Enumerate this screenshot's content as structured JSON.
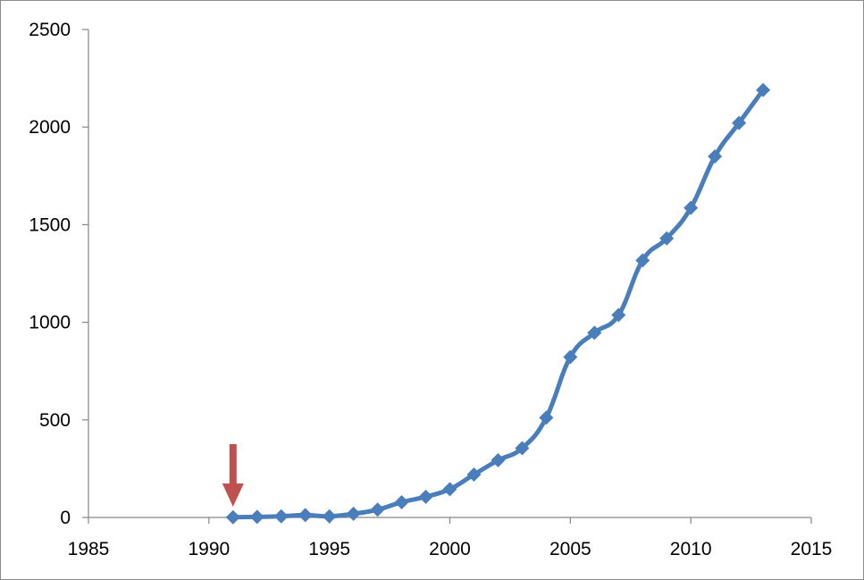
{
  "chart_data": {
    "type": "line",
    "title": "",
    "xlabel": "",
    "ylabel": "",
    "xlim": [
      1985,
      2015
    ],
    "ylim": [
      0,
      2500
    ],
    "x_ticks": [
      1985,
      1990,
      1995,
      2000,
      2005,
      2010,
      2015
    ],
    "y_ticks": [
      0,
      500,
      1000,
      1500,
      2000,
      2500
    ],
    "x_tick_labels": [
      "1985",
      "1990",
      "1995",
      "2000",
      "2005",
      "2010",
      "2015"
    ],
    "y_tick_labels": [
      "0",
      "500",
      "1000",
      "1500",
      "2000",
      "2500"
    ],
    "grid": false,
    "legend": "none",
    "series": [
      {
        "color": "#4a7ebb",
        "marker": "diamond",
        "x": [
          1991,
          1992,
          1993,
          1994,
          1995,
          1996,
          1997,
          1998,
          1999,
          2000,
          2001,
          2002,
          2003,
          2004,
          2005,
          2006,
          2007,
          2008,
          2009,
          2010,
          2011,
          2012,
          2013
        ],
        "y": [
          1,
          3,
          6,
          12,
          6,
          19,
          40,
          78,
          106,
          145,
          220,
          293,
          355,
          511,
          822,
          946,
          1037,
          1317,
          1430,
          1586,
          1850,
          2021,
          2190
        ]
      }
    ],
    "annotations": [
      {
        "type": "arrow",
        "points_to": {
          "x": 1991,
          "y": 0
        },
        "direction": "down",
        "color": "#c0504d"
      }
    ]
  }
}
